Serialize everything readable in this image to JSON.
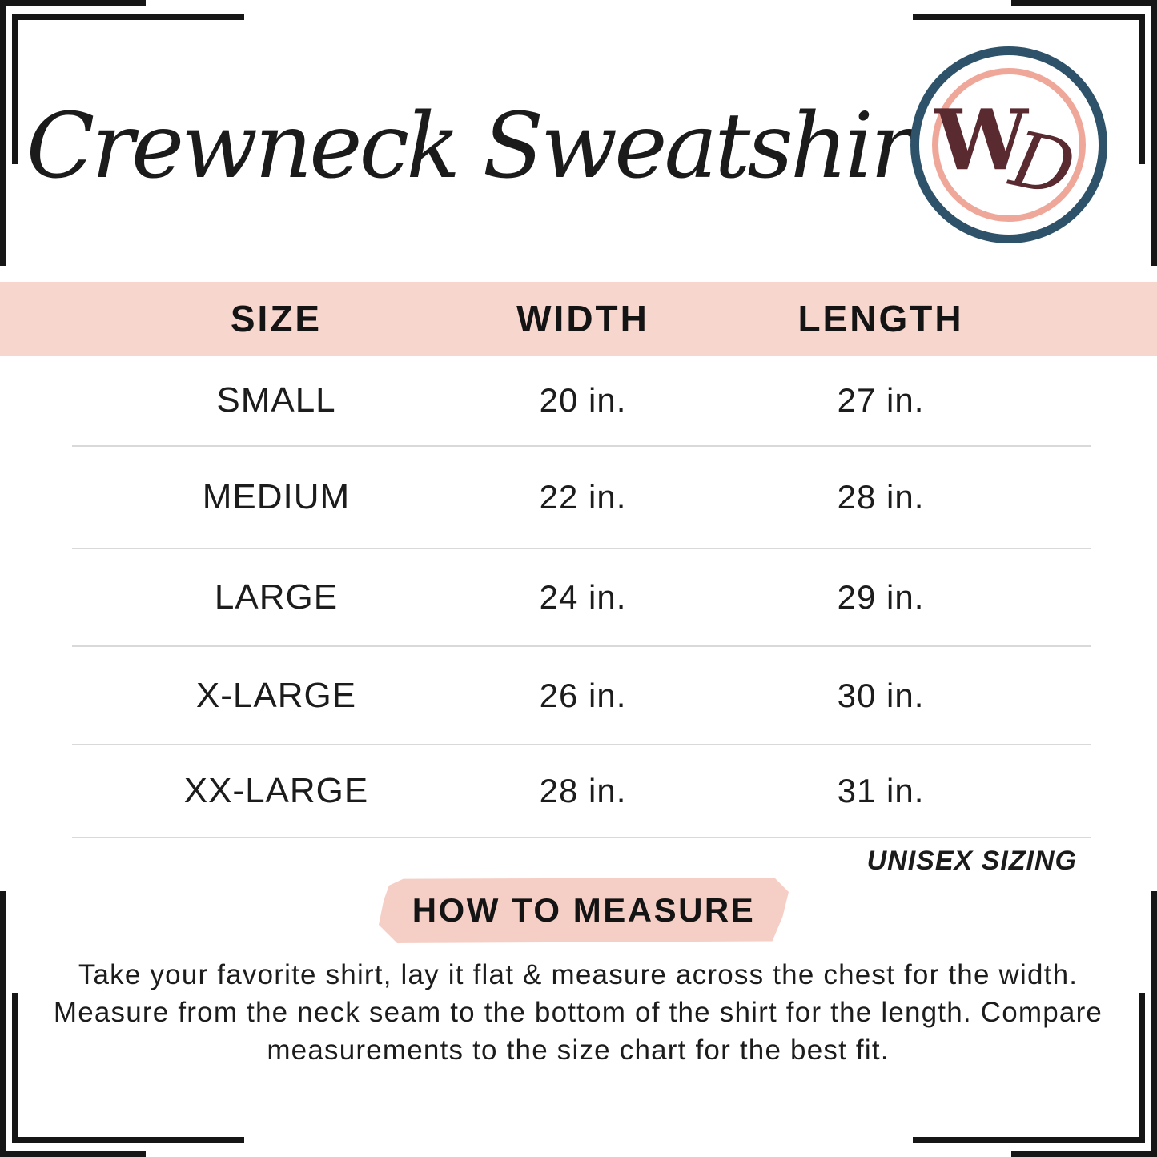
{
  "page": {
    "title": "Crewneck Sweatshirt",
    "unisex_note": "UNISEX SIZING"
  },
  "logo": {
    "letters": {
      "first": "W",
      "second": "D"
    }
  },
  "size_chart": {
    "columns": {
      "size": "SIZE",
      "width": "WIDTH",
      "length": "LENGTH"
    },
    "rows": [
      {
        "size": "SMALL",
        "width": "20 in.",
        "length": "27 in."
      },
      {
        "size": "MEDIUM",
        "width": "22 in.",
        "length": "28 in."
      },
      {
        "size": "LARGE",
        "width": "24 in.",
        "length": "29 in."
      },
      {
        "size": "X-LARGE",
        "width": "26 in.",
        "length": "30 in."
      },
      {
        "size": "XX-LARGE",
        "width": "28 in.",
        "length": "31 in."
      }
    ]
  },
  "how_to_measure": {
    "heading": "HOW TO MEASURE",
    "instructions": "Take your favorite shirt, lay it flat & measure across the chest for the width. Measure from the neck seam to the bottom of the shirt for the length. Compare measurements to the size chart for the best fit."
  },
  "colors": {
    "header_bar_pink": "#f7d6ce",
    "brush_pink": "#f5cfc5",
    "navy_ring": "#2e5269",
    "salmon_ring": "#efa79a",
    "maroon_monogram": "#5a2a31",
    "divider_gray": "#d9d9d9",
    "text_black": "#1a1a1a"
  },
  "chart_data": {
    "type": "table",
    "title": "Crewneck Sweatshirt",
    "columns": [
      "SIZE",
      "WIDTH",
      "LENGTH"
    ],
    "rows": [
      [
        "SMALL",
        "20 in.",
        "27 in."
      ],
      [
        "MEDIUM",
        "22 in.",
        "28 in."
      ],
      [
        "LARGE",
        "24 in.",
        "29 in."
      ],
      [
        "X-LARGE",
        "26 in.",
        "30 in."
      ],
      [
        "XX-LARGE",
        "28 in.",
        "31 in."
      ]
    ],
    "notes": [
      "UNISEX SIZING",
      "HOW TO MEASURE"
    ]
  }
}
